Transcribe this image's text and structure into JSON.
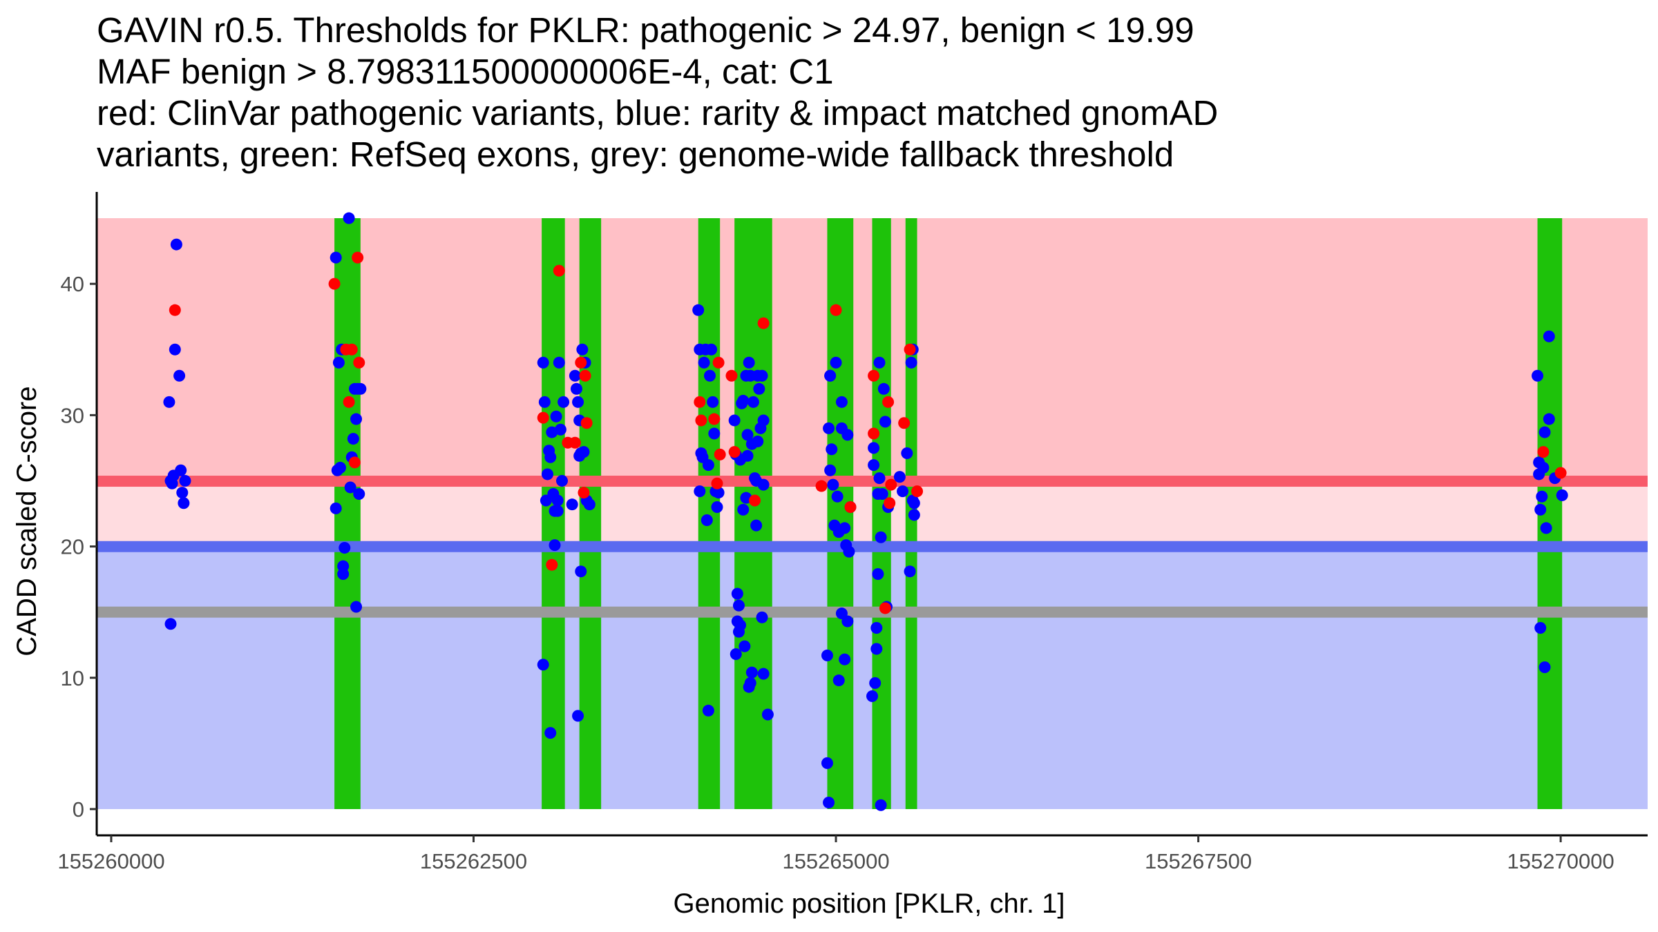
{
  "chart_data": {
    "type": "scatter",
    "title_lines": [
      "GAVIN r0.5. Thresholds for PKLR: pathogenic > 24.97, benign < 19.99",
      "MAF benign > 8.798311500000006E-4, cat: C1",
      "red: ClinVar pathogenic variants, blue: rarity & impact matched gnomAD",
      "variants, green: RefSeq exons, grey: genome-wide fallback threshold"
    ],
    "xlabel": "Genomic position [PKLR, chr. 1]",
    "ylabel": "CADD scaled C-score",
    "xlim": [
      155259900,
      155270600
    ],
    "ylim": [
      -2,
      47
    ],
    "x_ticks": [
      155260000,
      155262500,
      155265000,
      155267500,
      155270000
    ],
    "y_ticks": [
      0,
      10,
      20,
      30,
      40
    ],
    "grid": false,
    "legend": "none",
    "thresholds": {
      "pathogenic": 24.97,
      "benign": 19.99,
      "fallback": 15
    },
    "regions": {
      "pathogenic_band": {
        "from": 24.97,
        "to": 45,
        "color": "#ffc0c6"
      },
      "uncertain_band": {
        "from": 19.99,
        "to": 24.97,
        "color": "#ffdce0"
      },
      "benign_band": {
        "from": 0,
        "to": 19.99,
        "color": "#bbc1fb"
      }
    },
    "colors": {
      "pathogenic_line": "#f85a6a",
      "benign_line": "#5a6af0",
      "fallback_line": "#9a9a9a",
      "exon": "#1ec20a",
      "clinvar": "#ff0000",
      "gnomad": "#0000ff"
    },
    "exons": [
      [
        155261540,
        155261720
      ],
      [
        155262970,
        155263130
      ],
      [
        155263230,
        155263380
      ],
      [
        155264050,
        155264200
      ],
      [
        155264300,
        155264560
      ],
      [
        155264940,
        155265120
      ],
      [
        155265250,
        155265380
      ],
      [
        155265480,
        155265560
      ],
      [
        155269840,
        155270010
      ]
    ],
    "series": [
      {
        "name": "ClinVar pathogenic",
        "color": "#ff0000",
        "points": [
          [
            155260440,
            38
          ],
          [
            155261540,
            40
          ],
          [
            155261620,
            35
          ],
          [
            155261640,
            31
          ],
          [
            155261660,
            35
          ],
          [
            155261680,
            26.4
          ],
          [
            155261700,
            42
          ],
          [
            155261710,
            34
          ],
          [
            155262980,
            29.8
          ],
          [
            155263040,
            18.6
          ],
          [
            155263090,
            41
          ],
          [
            155263150,
            27.9
          ],
          [
            155263200,
            27.9
          ],
          [
            155263240,
            34
          ],
          [
            155263260,
            24.1
          ],
          [
            155263270,
            33
          ],
          [
            155263280,
            29.4
          ],
          [
            155264060,
            31
          ],
          [
            155264070,
            29.6
          ],
          [
            155264160,
            29.7
          ],
          [
            155264180,
            24.8
          ],
          [
            155264190,
            34
          ],
          [
            155264200,
            27
          ],
          [
            155264280,
            33
          ],
          [
            155264300,
            27.2
          ],
          [
            155264440,
            23.5
          ],
          [
            155264500,
            37
          ],
          [
            155264900,
            24.6
          ],
          [
            155265000,
            38
          ],
          [
            155265100,
            23
          ],
          [
            155265260,
            33
          ],
          [
            155265260,
            28.6
          ],
          [
            155265340,
            15.3
          ],
          [
            155265360,
            31
          ],
          [
            155265370,
            23.3
          ],
          [
            155265380,
            24.7
          ],
          [
            155265470,
            29.4
          ],
          [
            155265510,
            35
          ],
          [
            155265560,
            24.2
          ],
          [
            155269880,
            27.2
          ],
          [
            155270000,
            25.6
          ]
        ]
      },
      {
        "name": "gnomAD matched",
        "color": "#0000ff",
        "points": [
          [
            155260400,
            31
          ],
          [
            155260410,
            25
          ],
          [
            155260420,
            24.8
          ],
          [
            155260430,
            25.4
          ],
          [
            155260440,
            35
          ],
          [
            155260450,
            43
          ],
          [
            155260470,
            33
          ],
          [
            155260480,
            25.8
          ],
          [
            155260490,
            24.1
          ],
          [
            155260500,
            23.3
          ],
          [
            155260510,
            25
          ],
          [
            155260410,
            14.1
          ],
          [
            155261550,
            42
          ],
          [
            155261560,
            25.8
          ],
          [
            155261550,
            22.9
          ],
          [
            155261570,
            34
          ],
          [
            155261580,
            26
          ],
          [
            155261590,
            35
          ],
          [
            155261600,
            18.5
          ],
          [
            155261600,
            17.9
          ],
          [
            155261610,
            19.9
          ],
          [
            155261640,
            45
          ],
          [
            155261650,
            24.5
          ],
          [
            155261660,
            26.8
          ],
          [
            155261670,
            28.2
          ],
          [
            155261680,
            32
          ],
          [
            155261690,
            29.7
          ],
          [
            155261700,
            32
          ],
          [
            155261710,
            24
          ],
          [
            155261690,
            15.4
          ],
          [
            155261720,
            32
          ],
          [
            155262980,
            34
          ],
          [
            155262990,
            31
          ],
          [
            155262980,
            11
          ],
          [
            155263000,
            23.5
          ],
          [
            155263010,
            25.5
          ],
          [
            155263020,
            27.3
          ],
          [
            155263030,
            26.8
          ],
          [
            155263040,
            28.7
          ],
          [
            155263050,
            24
          ],
          [
            155263060,
            22.7
          ],
          [
            155263070,
            29.9
          ],
          [
            155263080,
            22.7
          ],
          [
            155263090,
            34
          ],
          [
            155263100,
            28.9
          ],
          [
            155263110,
            25
          ],
          [
            155263120,
            31
          ],
          [
            155263030,
            5.8
          ],
          [
            155263060,
            20.1
          ],
          [
            155263080,
            23.5
          ],
          [
            155263180,
            23.2
          ],
          [
            155263200,
            33
          ],
          [
            155263210,
            32
          ],
          [
            155263220,
            31
          ],
          [
            155263230,
            26.9
          ],
          [
            155263240,
            27.1
          ],
          [
            155263250,
            35
          ],
          [
            155263260,
            27.2
          ],
          [
            155263270,
            34
          ],
          [
            155263280,
            23.5
          ],
          [
            155263300,
            23.2
          ],
          [
            155263240,
            18.1
          ],
          [
            155263220,
            7.1
          ],
          [
            155263230,
            29.6
          ],
          [
            155264050,
            38
          ],
          [
            155264060,
            35
          ],
          [
            155264060,
            24.2
          ],
          [
            155264070,
            27.1
          ],
          [
            155264080,
            26.8
          ],
          [
            155264090,
            34
          ],
          [
            155264100,
            35
          ],
          [
            155264110,
            22
          ],
          [
            155264120,
            26.2
          ],
          [
            155264130,
            33
          ],
          [
            155264140,
            35
          ],
          [
            155264150,
            31
          ],
          [
            155264160,
            28.6
          ],
          [
            155264170,
            24.2
          ],
          [
            155264180,
            23
          ],
          [
            155264190,
            24.1
          ],
          [
            155264120,
            7.5
          ],
          [
            155264300,
            29.6
          ],
          [
            155264310,
            27
          ],
          [
            155264320,
            16.4
          ],
          [
            155264330,
            15.5
          ],
          [
            155264340,
            14
          ],
          [
            155264340,
            26.6
          ],
          [
            155264350,
            30.9
          ],
          [
            155264360,
            31.1
          ],
          [
            155264360,
            22.8
          ],
          [
            155264370,
            12.4
          ],
          [
            155264380,
            23.7
          ],
          [
            155264390,
            28.5
          ],
          [
            155264400,
            34
          ],
          [
            155264410,
            33
          ],
          [
            155264420,
            27.8
          ],
          [
            155264430,
            31
          ],
          [
            155264440,
            25.2
          ],
          [
            155264450,
            21.6
          ],
          [
            155264460,
            33
          ],
          [
            155264470,
            32
          ],
          [
            155264480,
            29
          ],
          [
            155264490,
            33
          ],
          [
            155264500,
            24.7
          ],
          [
            155264310,
            11.8
          ],
          [
            155264320,
            14.3
          ],
          [
            155264330,
            13.5
          ],
          [
            155264400,
            9.3
          ],
          [
            155264410,
            9.6
          ],
          [
            155264420,
            10.4
          ],
          [
            155264450,
            25
          ],
          [
            155264460,
            28
          ],
          [
            155264490,
            14.6
          ],
          [
            155264500,
            10.3
          ],
          [
            155264530,
            7.2
          ],
          [
            155264500,
            29.6
          ],
          [
            155264380,
            33
          ],
          [
            155264390,
            26.9
          ],
          [
            155264940,
            3.5
          ],
          [
            155264950,
            0.5
          ],
          [
            155264940,
            11.7
          ],
          [
            155264960,
            33
          ],
          [
            155264960,
            25.8
          ],
          [
            155264970,
            27.4
          ],
          [
            155264980,
            24.7
          ],
          [
            155264990,
            21.6
          ],
          [
            155265000,
            34
          ],
          [
            155265010,
            23.8
          ],
          [
            155265020,
            21.1
          ],
          [
            155265040,
            31
          ],
          [
            155265040,
            29
          ],
          [
            155265060,
            21.4
          ],
          [
            155265070,
            20.1
          ],
          [
            155265080,
            28.5
          ],
          [
            155265090,
            19.6
          ],
          [
            155265100,
            23
          ],
          [
            155265020,
            9.8
          ],
          [
            155265040,
            14.9
          ],
          [
            155265060,
            11.4
          ],
          [
            155265080,
            14.3
          ],
          [
            155264950,
            29
          ],
          [
            155264960,
            33
          ],
          [
            155265260,
            27.5
          ],
          [
            155265260,
            26.2
          ],
          [
            155265250,
            8.6
          ],
          [
            155265270,
            9.6
          ],
          [
            155265280,
            12.2
          ],
          [
            155265280,
            13.8
          ],
          [
            155265290,
            17.9
          ],
          [
            155265300,
            25.2
          ],
          [
            155265310,
            20.7
          ],
          [
            155265300,
            34
          ],
          [
            155265320,
            24
          ],
          [
            155265330,
            32
          ],
          [
            155265340,
            29.5
          ],
          [
            155265360,
            23
          ],
          [
            155265350,
            15.4
          ],
          [
            155265290,
            24
          ],
          [
            155265440,
            25.3
          ],
          [
            155265460,
            24.2
          ],
          [
            155265490,
            27.1
          ],
          [
            155265510,
            18.1
          ],
          [
            155265520,
            34
          ],
          [
            155265530,
            35
          ],
          [
            155265540,
            23.3
          ],
          [
            155265540,
            22.4
          ],
          [
            155265530,
            23.5
          ],
          [
            155265310,
            0.3
          ],
          [
            155269840,
            33
          ],
          [
            155269850,
            26.4
          ],
          [
            155269850,
            25.5
          ],
          [
            155269860,
            22.8
          ],
          [
            155269860,
            13.8
          ],
          [
            155269870,
            23.8
          ],
          [
            155269890,
            28.7
          ],
          [
            155269900,
            21.4
          ],
          [
            155269890,
            10.8
          ],
          [
            155269920,
            29.7
          ],
          [
            155269920,
            36
          ],
          [
            155269960,
            25.2
          ],
          [
            155270010,
            23.9
          ],
          [
            155269880,
            26
          ]
        ]
      }
    ]
  }
}
